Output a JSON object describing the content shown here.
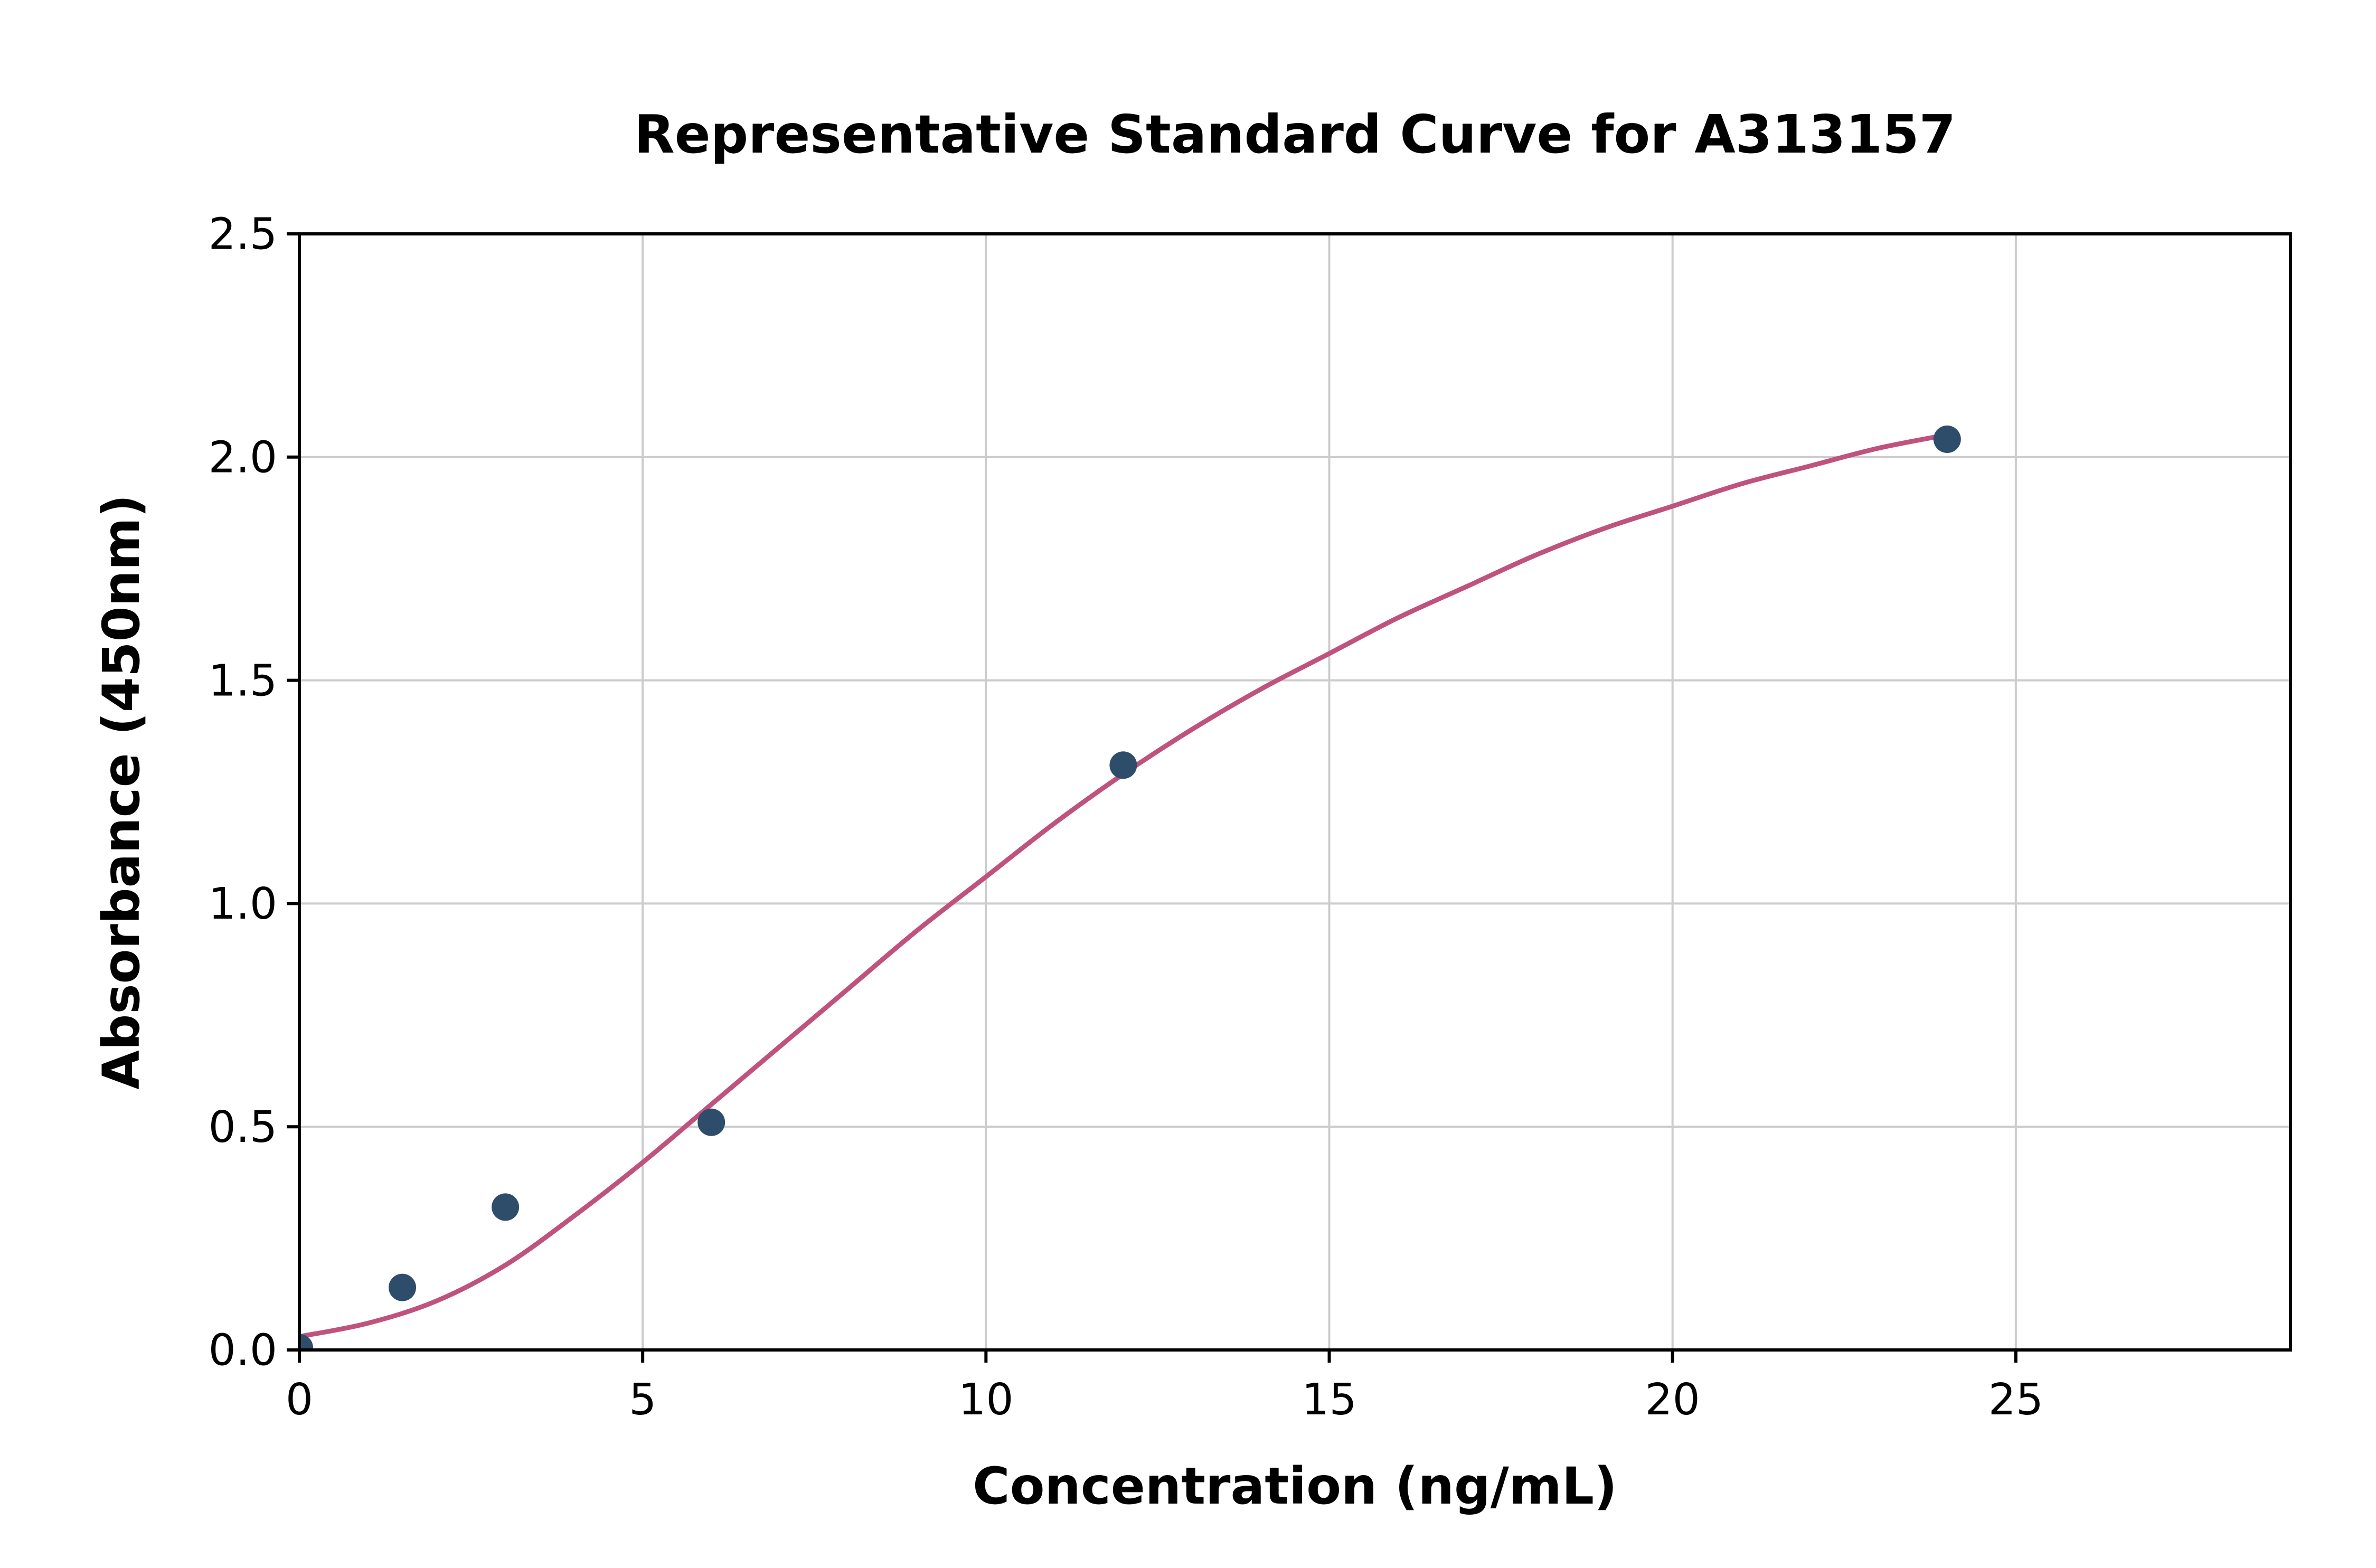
{
  "chart_data": {
    "type": "scatter",
    "title": "Representative Standard Curve for A313157",
    "xlabel": "Concentration (ng/mL)",
    "ylabel": "Absorbance (450nm)",
    "xlim": [
      0,
      29.0
    ],
    "ylim": [
      0,
      2.5
    ],
    "grid": true,
    "legend": "none",
    "xticks": {
      "values": [
        0,
        5,
        10,
        15,
        20,
        25
      ],
      "labels": [
        "0",
        "5",
        "10",
        "15",
        "20",
        "25"
      ]
    },
    "yticks": {
      "values": [
        0,
        0.5,
        1.0,
        1.5,
        2.0,
        2.5
      ],
      "labels": [
        "0.0",
        "0.5",
        "1.0",
        "1.5",
        "2.0",
        "2.5"
      ]
    },
    "points": {
      "name": "standard-points",
      "x": [
        0,
        1.5,
        3,
        6,
        12,
        24
      ],
      "y": [
        0.005,
        0.14,
        0.32,
        0.51,
        1.31,
        2.04
      ]
    },
    "fit_curve": {
      "name": "4PL-fit",
      "x": [
        0,
        1,
        2,
        3,
        4,
        5,
        6,
        7,
        8,
        9,
        10,
        11,
        12,
        13,
        14,
        15,
        16,
        17,
        18,
        19,
        20,
        21,
        22,
        23,
        24
      ],
      "y": [
        0.03,
        0.06,
        0.11,
        0.19,
        0.3,
        0.42,
        0.55,
        0.68,
        0.81,
        0.94,
        1.06,
        1.18,
        1.29,
        1.39,
        1.48,
        1.56,
        1.64,
        1.71,
        1.78,
        1.84,
        1.89,
        1.94,
        1.98,
        2.02,
        2.05
      ]
    },
    "colors": {
      "curve": "#c0527e",
      "points": "#2e4d6b",
      "grid": "#cccccc",
      "axis": "#000000",
      "background": "#ffffff",
      "tick_label": "#000000"
    }
  }
}
